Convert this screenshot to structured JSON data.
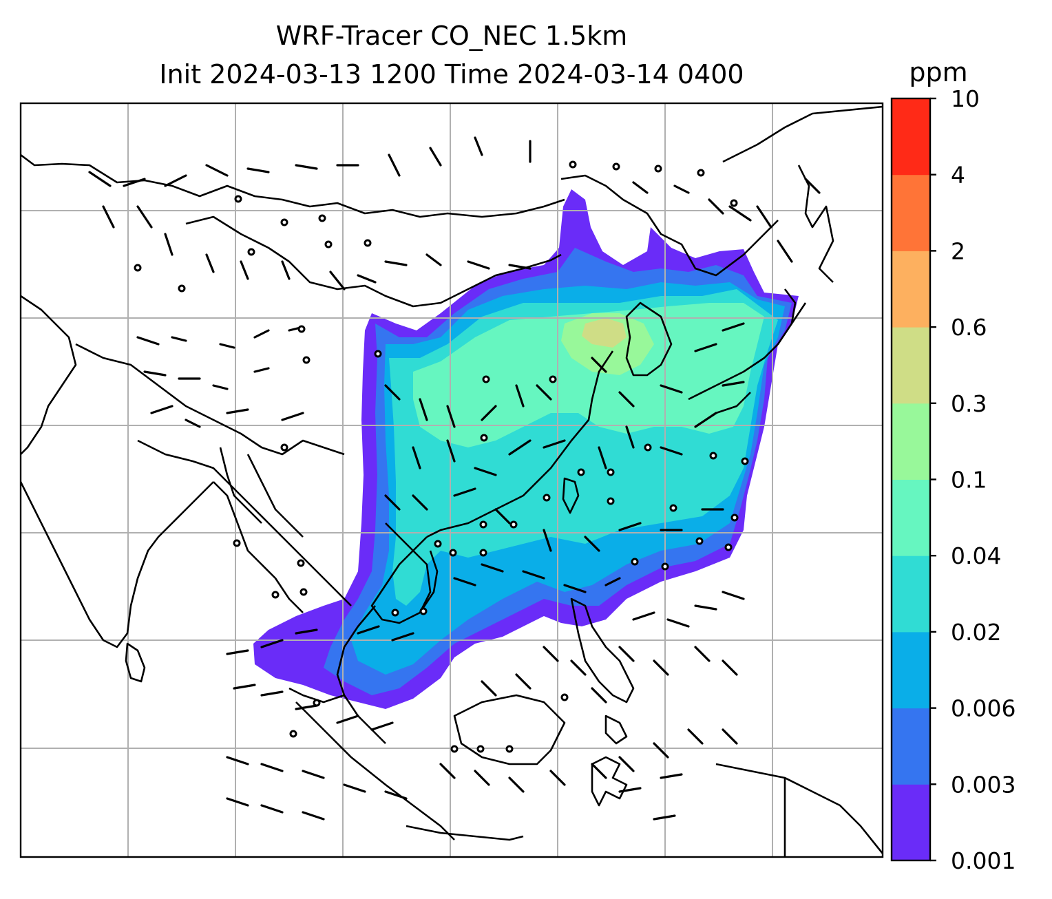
{
  "title": {
    "line1": "WRF-Tracer CO_NEC 1.5km",
    "line2": "Init 2024-03-13 1200 Time 2024-03-14 0400"
  },
  "colorbar": {
    "unit": "ppm",
    "ticks": [
      "0.001",
      "0.003",
      "0.006",
      "0.02",
      "0.04",
      "0.1",
      "0.3",
      "0.6",
      "2",
      "4",
      "10"
    ],
    "colors": [
      "#6a2cf8",
      "#3575f0",
      "#0aaee8",
      "#30dcd4",
      "#66f6c0",
      "#98f89a",
      "#cfdd86",
      "#fdb05f",
      "#ff7437",
      "#ff2a17"
    ]
  },
  "map": {
    "gridlines": true,
    "wind_barbs": true,
    "coastlines": true
  }
}
